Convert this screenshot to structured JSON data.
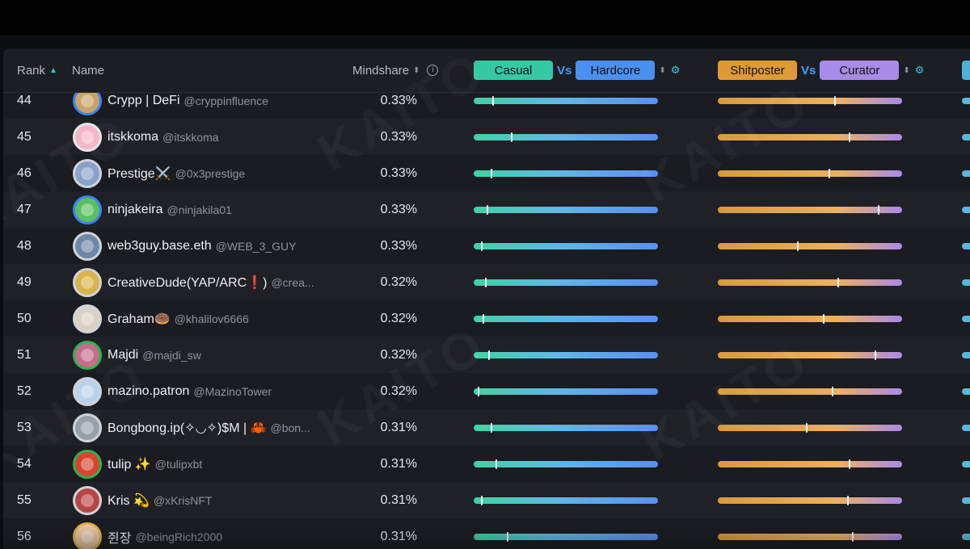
{
  "header": {
    "rank_label": "Rank",
    "name_label": "Name",
    "mindshare_label": "Mindshare",
    "info_icon": "info-icon",
    "axis1": {
      "left": "Casual",
      "vs": "Vs",
      "right": "Hardcore",
      "left_color": "#35c9a2",
      "right_color": "#4a90f0"
    },
    "axis2": {
      "left": "Shitposter",
      "vs": "Vs",
      "right": "Curator",
      "left_color": "#e09a35",
      "right_color": "#a88be8"
    }
  },
  "watermark": "KAITO",
  "rows": [
    {
      "rank": "44",
      "name": "Crypp | DeFi",
      "handle": "@cryppinfluence",
      "mindshare": "0.33%",
      "avatar_color": "#c7a46a",
      "ring": "#3b82f6",
      "s1": 0.1,
      "s2": 0.63
    },
    {
      "rank": "45",
      "name": "itskkoma",
      "handle": "@itskkoma",
      "mindshare": "0.33%",
      "avatar_color": "#f3b6c8",
      "ring": "#e5e7eb",
      "s1": 0.2,
      "s2": 0.71
    },
    {
      "rank": "46",
      "name": "Prestige⚔️",
      "handle": "@0x3prestige",
      "mindshare": "0.33%",
      "avatar_color": "#8aa1c9",
      "ring": "#cfd3da",
      "s1": 0.09,
      "s2": 0.6
    },
    {
      "rank": "47",
      "name": "ninjakeira",
      "handle": "@ninjakila01",
      "mindshare": "0.33%",
      "avatar_color": "#5bbf63",
      "ring": "#3b82f6",
      "s1": 0.07,
      "s2": 0.87
    },
    {
      "rank": "48",
      "name": "web3guy.base.eth",
      "handle": "@WEB_3_GUY",
      "mindshare": "0.33%",
      "avatar_color": "#6d88a6",
      "ring": "#cfd3da",
      "s1": 0.04,
      "s2": 0.43
    },
    {
      "rank": "49",
      "name": "CreativeDude(YAP/ARC❗)",
      "handle": "@crea...",
      "mindshare": "0.32%",
      "avatar_color": "#d8b44a",
      "ring": "#cfd3da",
      "s1": 0.06,
      "s2": 0.65
    },
    {
      "rank": "50",
      "name": "Graham🍩",
      "handle": "@khalilov6666",
      "mindshare": "0.32%",
      "avatar_color": "#d9d2c4",
      "ring": "#cfd3da",
      "s1": 0.05,
      "s2": 0.57
    },
    {
      "rank": "51",
      "name": "Majdi",
      "handle": "@majdi_sw",
      "mindshare": "0.32%",
      "avatar_color": "#c56d8c",
      "ring": "#2fb34f",
      "s1": 0.08,
      "s2": 0.85
    },
    {
      "rank": "52",
      "name": "mazino.patron",
      "handle": "@MazinoTower",
      "mindshare": "0.32%",
      "avatar_color": "#b9d2e8",
      "ring": "#cfd3da",
      "s1": 0.02,
      "s2": 0.62
    },
    {
      "rank": "53",
      "name": "Bongbong.ip(✧◡✧)$M | 🦀",
      "handle": "@bon...",
      "mindshare": "0.31%",
      "avatar_color": "#97a0a8",
      "ring": "#cfd3da",
      "s1": 0.09,
      "s2": 0.48
    },
    {
      "rank": "54",
      "name": "tulip ✨",
      "handle": "@tulipxbt",
      "mindshare": "0.31%",
      "avatar_color": "#d6452f",
      "ring": "#2fb34f",
      "s1": 0.12,
      "s2": 0.71
    },
    {
      "rank": "55",
      "name": "Kris 💫",
      "handle": "@xKrisNFT",
      "mindshare": "0.31%",
      "avatar_color": "#b84646",
      "ring": "#cfd3da",
      "s1": 0.04,
      "s2": 0.7
    },
    {
      "rank": "56",
      "name": "쥔장",
      "handle": "@beingRich2000",
      "mindshare": "0.31%",
      "avatar_color": "#e8c9a2",
      "ring": "#e0b34a",
      "s1": 0.18,
      "s2": 0.73
    }
  ]
}
